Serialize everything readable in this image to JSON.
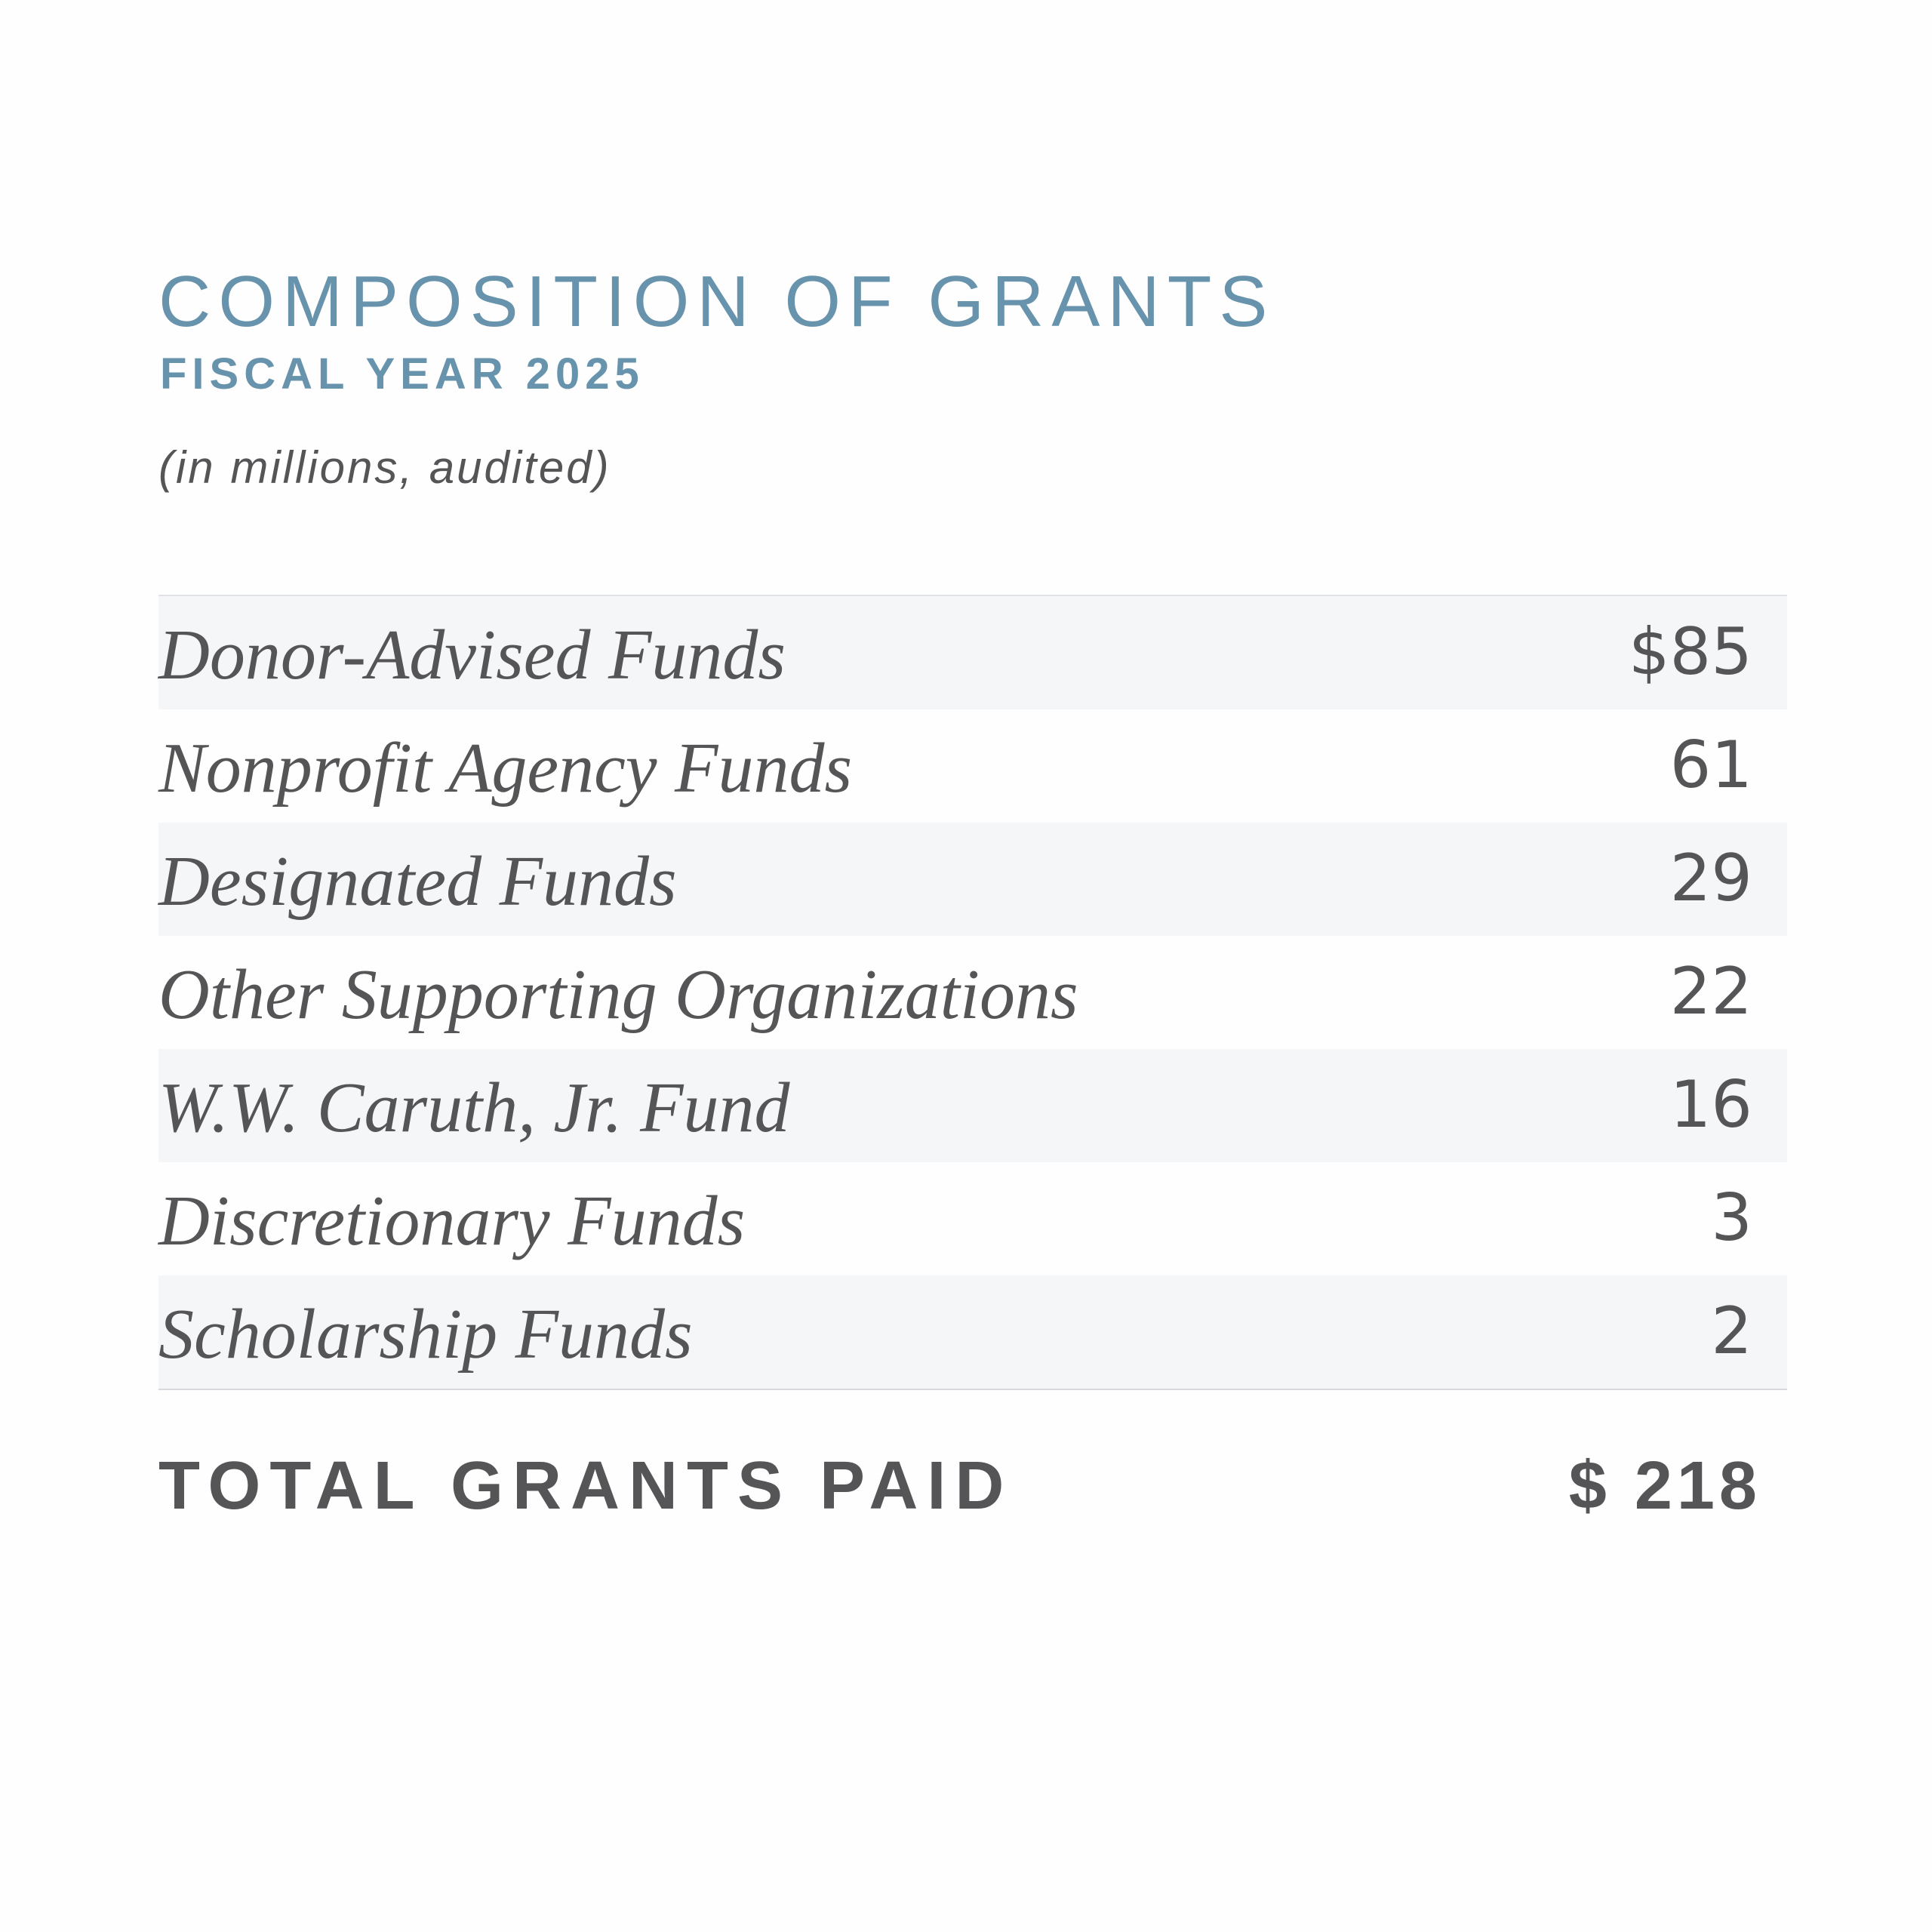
{
  "header": {
    "title": "COMPOSITION OF GRANTS",
    "subtitle": "FISCAL YEAR 2025",
    "note": "(in millions, audited)"
  },
  "table": {
    "rows": [
      [
        "Donor-Advised Funds",
        "$85"
      ],
      [
        "Nonprofit Agency Funds",
        "61"
      ],
      [
        "Designated Funds",
        "29"
      ],
      [
        "Other Supporting Organizations",
        "22"
      ],
      [
        "W.W. Caruth, Jr. Fund",
        "16"
      ],
      [
        "Discretionary Funds",
        "3"
      ],
      [
        "Scholarship Funds",
        "2"
      ]
    ]
  },
  "total": {
    "label": "TOTAL GRANTS PAID",
    "value": "$ 218"
  }
}
